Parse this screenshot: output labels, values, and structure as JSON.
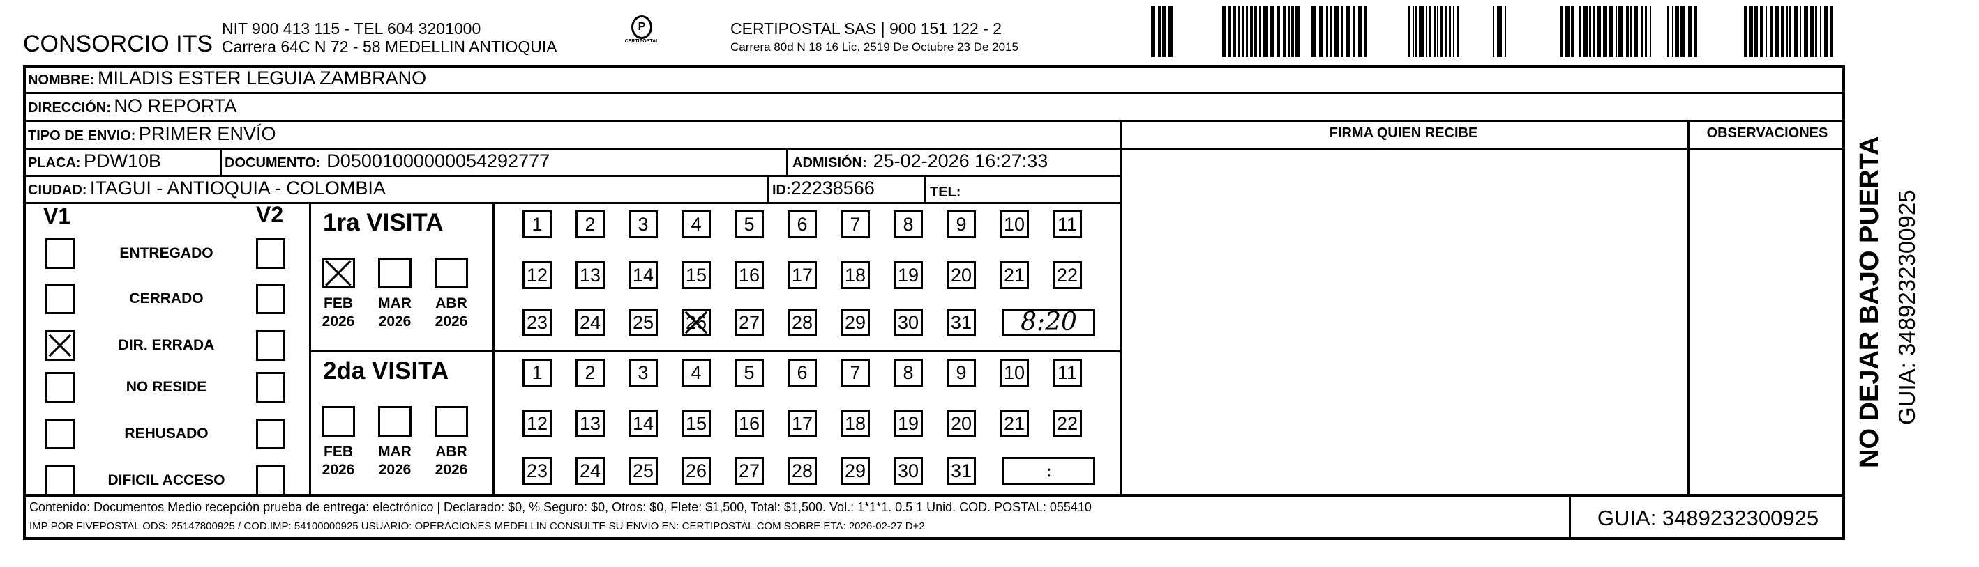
{
  "header": {
    "company": "CONSORCIO ITS",
    "nit": "NIT 900 413 115 - TEL 604 3201000",
    "address": "Carrera 64C N 72 - 58 MEDELLIN ANTIOQUIA",
    "logo_text": "CERTIPOSTAL",
    "carrier": "CERTIPOSTAL SAS | 900 151 122 - 2",
    "carrier_address": "Carrera 80d N 18 16  Lic. 2519 De Octubre 23 De 2015"
  },
  "fields": {
    "nombre_label": "NOMBRE:",
    "nombre": "MILADIS ESTER LEGUIA ZAMBRANO",
    "direccion_label": "DIRECCIÓN:",
    "direccion": "NO REPORTA",
    "tipo_label": "TIPO DE ENVIO:",
    "tipo": "PRIMER ENVÍO",
    "placa_label": "PLACA:",
    "placa": "PDW10B",
    "documento_label": "DOCUMENTO:",
    "documento": "D05001000000054292777",
    "admision_label": "ADMISIÓN:",
    "admision": "25-02-2026 16:27:33",
    "ciudad_label": "CIUDAD:",
    "ciudad": "ITAGUI - ANTIOQUIA - COLOMBIA",
    "id_label": "ID:",
    "id": "22238566",
    "tel_label": "TEL:",
    "tel": ""
  },
  "columns": {
    "firma": "FIRMA QUIEN RECIBE",
    "observaciones": "OBSERVACIONES"
  },
  "status": {
    "v1": "V1",
    "v2": "V2",
    "items": [
      {
        "label": "ENTREGADO",
        "v1": false,
        "v2": false
      },
      {
        "label": "CERRADO",
        "v1": false,
        "v2": false
      },
      {
        "label": "DIR. ERRADA",
        "v1": true,
        "v2": false
      },
      {
        "label": "NO RESIDE",
        "v1": false,
        "v2": false
      },
      {
        "label": "REHUSADO",
        "v1": false,
        "v2": false
      },
      {
        "label": "DIFICIL ACCESO",
        "v1": false,
        "v2": false
      }
    ]
  },
  "visits": [
    {
      "title": "1ra VISITA",
      "months": [
        {
          "m": "FEB",
          "y": "2026",
          "checked": true
        },
        {
          "m": "MAR",
          "y": "2026",
          "checked": false
        },
        {
          "m": "ABR",
          "y": "2026",
          "checked": false
        }
      ],
      "marked_day": 26,
      "time": "8:20"
    },
    {
      "title": "2da VISITA",
      "months": [
        {
          "m": "FEB",
          "y": "2026",
          "checked": false
        },
        {
          "m": "MAR",
          "y": "2026",
          "checked": false
        },
        {
          "m": "ABR",
          "y": "2026",
          "checked": false
        }
      ],
      "marked_day": null,
      "time": ":"
    }
  ],
  "footer": {
    "line1": "Contenido: Documentos Medio recepción prueba de entrega: electrónico | Declarado: $0, % Seguro: $0, Otros: $0, Flete: $1,500, Total: $1,500. Vol.: 1*1*1. 0.5  1 Unid. COD. POSTAL: 055410",
    "line2": "IMP POR FIVEPOSTAL ODS: 25147800925 / COD.IMP: 54100000925 USUARIO: OPERACIONES MEDELLIN CONSULTE SU ENVIO EN: CERTIPOSTAL.COM SOBRE ETA: 2026-02-27 D+2",
    "guia": "GUIA: 3489232300925"
  },
  "side": {
    "warning": "NO DEJAR BAJO PUERTA",
    "guia": "GUIA: 3489232300925"
  }
}
